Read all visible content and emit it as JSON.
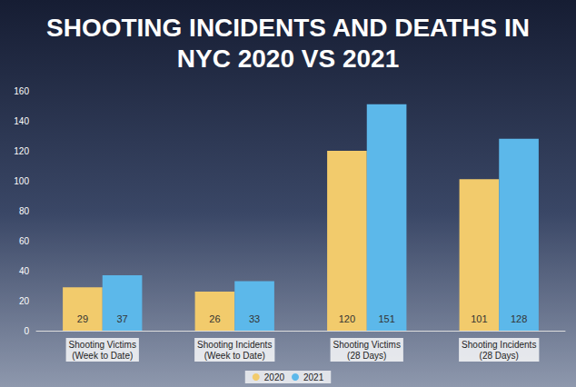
{
  "chart_data": {
    "type": "bar",
    "title": "SHOOTING INCIDENTS AND DEATHS IN NYC 2020 VS 2021",
    "categories": [
      "Shooting Victims (Week to Date)",
      "Shooting Incidents (Week to Date)",
      "Shooting Victims (28 Days)",
      "Shooting Incidents (28 Days)"
    ],
    "series": [
      {
        "name": "2020",
        "color": "#f2cb6c",
        "values": [
          29,
          26,
          120,
          101
        ]
      },
      {
        "name": "2021",
        "color": "#5cb8ea",
        "values": [
          37,
          33,
          151,
          128
        ]
      }
    ],
    "ylim": [
      0,
      160
    ],
    "yticks": [
      0,
      20,
      40,
      60,
      80,
      100,
      120,
      140,
      160
    ],
    "grid": false,
    "legend": "bottom",
    "data_labels": true
  }
}
